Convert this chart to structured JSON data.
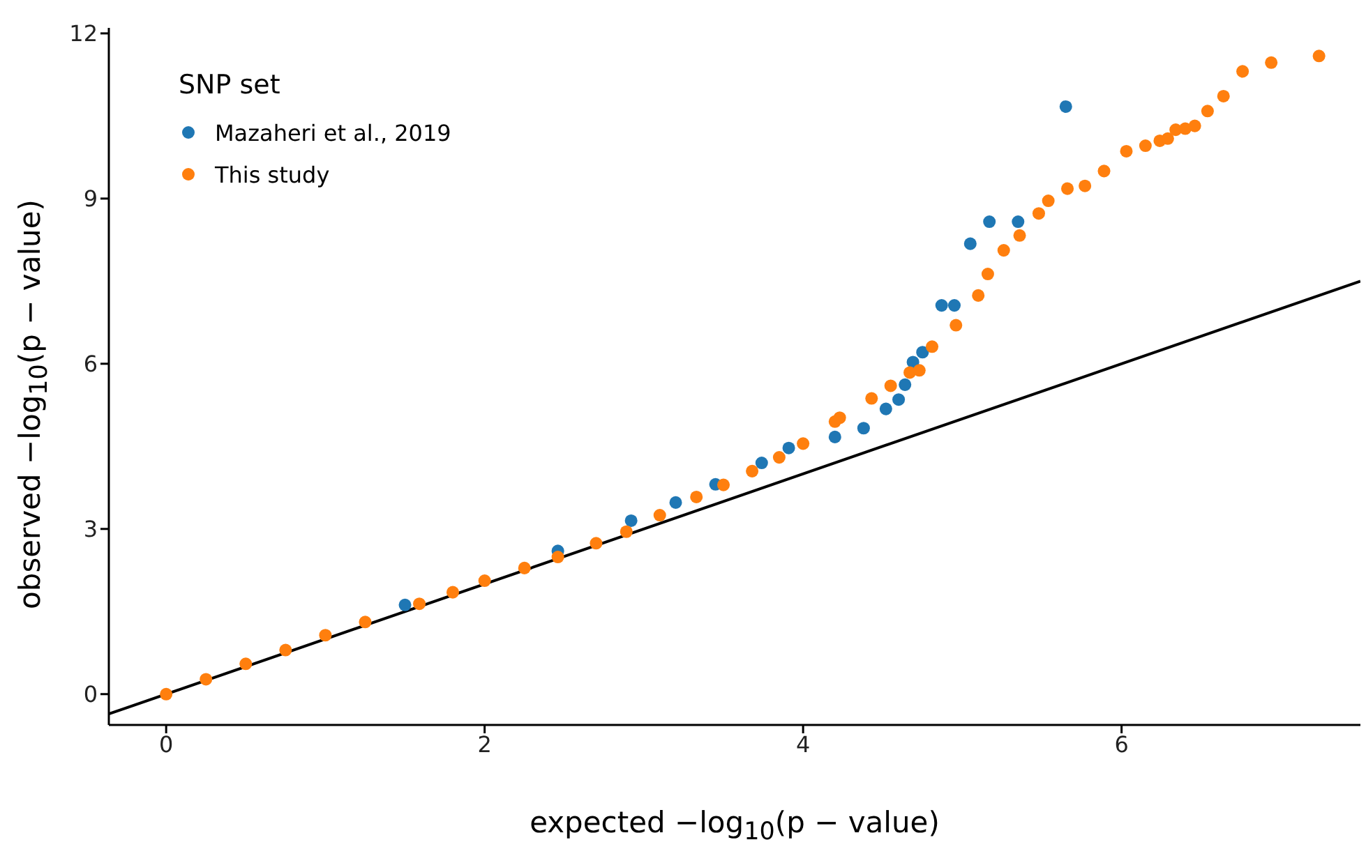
{
  "chart_data": {
    "type": "scatter",
    "xlabel": "expected −log$_{10}$(p − value)",
    "ylabel": "observed −log$_{10}$(p − value)",
    "legend_title": "SNP set",
    "legend": "top left",
    "marker": "circle",
    "grid": false,
    "xlim": [
      -0.36,
      7.5
    ],
    "xticks": [
      0,
      2,
      4,
      6
    ],
    "ylim": [
      -0.56,
      12.1
    ],
    "yticks": [
      0,
      3,
      6,
      9,
      12
    ],
    "series": [
      {
        "name": "Mazaheri et al., 2019",
        "color": "#1f77b4",
        "x": [
          1.5,
          2.46,
          2.92,
          3.2,
          3.45,
          3.74,
          3.91,
          4.2,
          4.38,
          4.52,
          4.6,
          4.64,
          4.69,
          4.75,
          4.87,
          4.95,
          5.05,
          5.17,
          5.35,
          5.65
        ],
        "values": [
          1.62,
          2.6,
          3.15,
          3.48,
          3.81,
          4.2,
          4.47,
          4.67,
          4.83,
          5.18,
          5.35,
          5.62,
          6.03,
          6.21,
          7.06,
          7.06,
          8.18,
          8.58,
          8.58,
          10.67
        ]
      },
      {
        "name": "This study",
        "color": "#ff7f0e",
        "x": [
          0,
          0.25,
          0.5,
          0.75,
          1,
          1.25,
          1.59,
          1.8,
          2,
          2.25,
          2.46,
          2.7,
          2.89,
          3.1,
          3.33,
          3.5,
          3.68,
          3.85,
          4.0,
          4.2,
          4.23,
          4.43,
          4.55,
          4.67,
          4.73,
          4.81,
          4.96,
          5.1,
          5.16,
          5.26,
          5.36,
          5.48,
          5.54,
          5.66,
          5.77,
          5.89,
          6.03,
          6.15,
          6.24,
          6.29,
          6.34,
          6.4,
          6.46,
          6.54,
          6.64,
          6.76,
          6.94,
          7.24
        ],
        "values": [
          0,
          0.27,
          0.55,
          0.8,
          1.07,
          1.31,
          1.64,
          1.85,
          2.06,
          2.29,
          2.49,
          2.74,
          2.95,
          3.25,
          3.58,
          3.8,
          4.05,
          4.3,
          4.55,
          4.95,
          5.02,
          5.37,
          5.6,
          5.84,
          5.88,
          6.31,
          6.7,
          7.24,
          7.63,
          8.06,
          8.33,
          8.73,
          8.96,
          9.18,
          9.23,
          9.5,
          9.86,
          9.96,
          10.05,
          10.09,
          10.25,
          10.27,
          10.32,
          10.59,
          10.86,
          11.31,
          11.47,
          11.59
        ]
      },
      {
        "type": "line",
        "marker": "none",
        "color": "#000000",
        "x": [
          -0.36,
          7.5
        ],
        "values": [
          -0.36,
          7.5
        ]
      }
    ]
  }
}
